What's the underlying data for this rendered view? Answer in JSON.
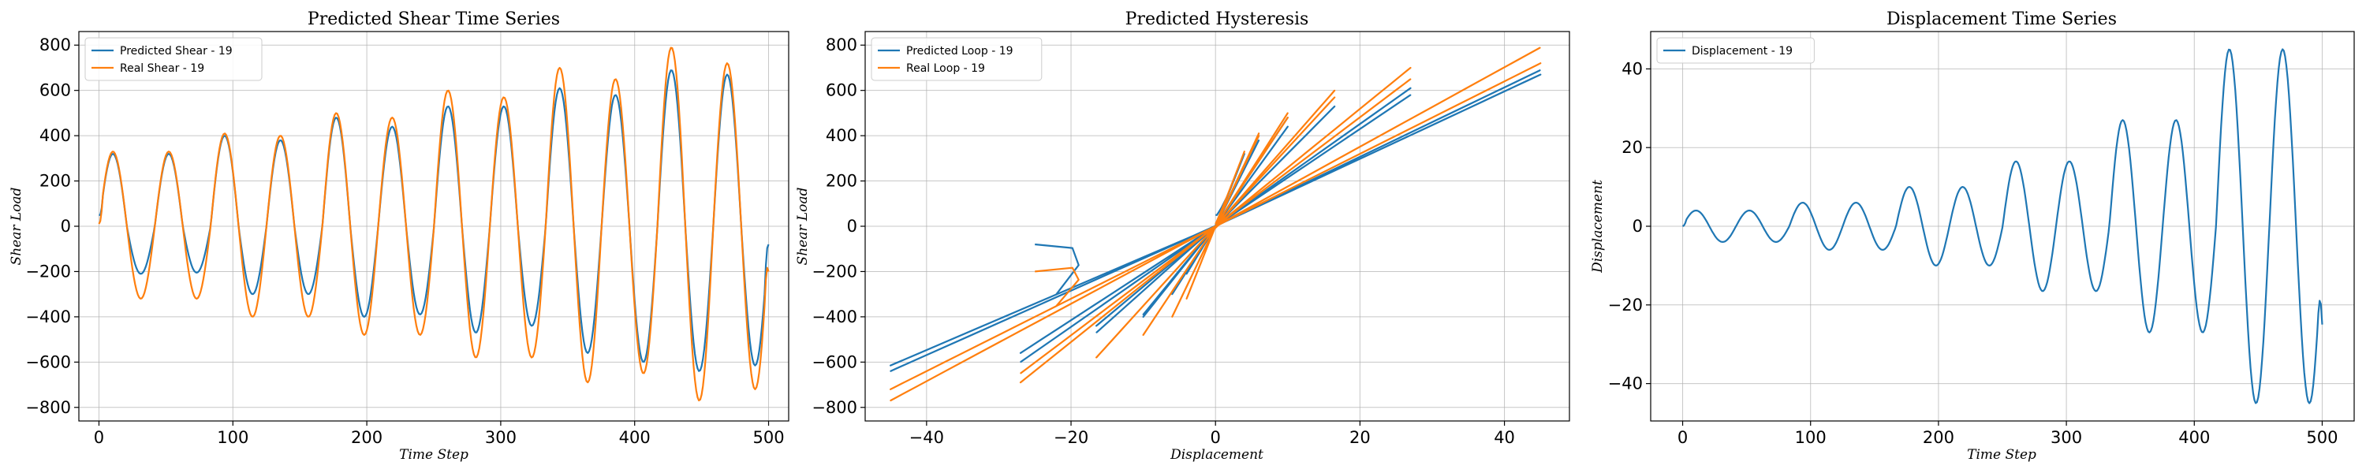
{
  "colors": {
    "blue": "#1f77b4",
    "orange": "#ff7f0e",
    "grid": "#b0b0b0"
  },
  "chart_data": [
    {
      "id": "shear",
      "type": "line",
      "title": "Predicted Shear Time Series",
      "xlabel": "Time Step",
      "ylabel": "Shear Load",
      "xlim": [
        -15,
        515
      ],
      "ylim": [
        -860,
        860
      ],
      "xticks": [
        0,
        100,
        200,
        300,
        400,
        500
      ],
      "yticks": [
        -800,
        -600,
        -400,
        -200,
        0,
        200,
        400,
        600,
        800
      ],
      "grid": true,
      "legend": "top-left",
      "series": [
        {
          "name": "Predicted Shear - 19",
          "color": "#1f77b4",
          "generator": "oscillation",
          "period": 41.7,
          "cycle_peaks": [
            [
              320,
              -210
            ],
            [
              320,
              -205
            ],
            [
              400,
              -300
            ],
            [
              380,
              -300
            ],
            [
              480,
              -400
            ],
            [
              440,
              -390
            ],
            [
              530,
              -470
            ],
            [
              530,
              -440
            ],
            [
              610,
              -560
            ],
            [
              580,
              -600
            ],
            [
              690,
              -640
            ],
            [
              670,
              -615
            ]
          ],
          "start_value": 50,
          "end_value": -80
        },
        {
          "name": "Real Shear - 19",
          "color": "#ff7f0e",
          "generator": "oscillation",
          "period": 41.7,
          "cycle_peaks": [
            [
              330,
              -320
            ],
            [
              330,
              -320
            ],
            [
              410,
              -400
            ],
            [
              400,
              -400
            ],
            [
              500,
              -480
            ],
            [
              480,
              -480
            ],
            [
              600,
              -580
            ],
            [
              570,
              -580
            ],
            [
              700,
              -690
            ],
            [
              650,
              -650
            ],
            [
              790,
              -770
            ],
            [
              720,
              -720
            ]
          ],
          "start_value": 10,
          "end_value": -200
        }
      ]
    },
    {
      "id": "hysteresis",
      "type": "line",
      "title": "Predicted Hysteresis",
      "xlabel": "Displacement",
      "ylabel": "Shear Load",
      "xlim": [
        -48.5,
        49
      ],
      "ylim": [
        -860,
        860
      ],
      "xticks": [
        -40,
        -20,
        0,
        20,
        40
      ],
      "yticks": [
        -800,
        -600,
        -400,
        -200,
        0,
        200,
        400,
        600,
        800
      ],
      "grid": true,
      "legend": "top-left",
      "series": [
        {
          "name": "Predicted Loop - 19",
          "color": "#1f77b4",
          "source": "shear.series.0"
        },
        {
          "name": "Real Loop - 19",
          "color": "#ff7f0e",
          "source": "shear.series.1"
        }
      ]
    },
    {
      "id": "displacement",
      "type": "line",
      "title": "Displacement Time Series",
      "xlabel": "Time Step",
      "ylabel": "Displacement",
      "xlim": [
        -25,
        525
      ],
      "ylim": [
        -49.5,
        49.5
      ],
      "xticks": [
        0,
        100,
        200,
        300,
        400,
        500
      ],
      "yticks": [
        -40,
        -20,
        0,
        20,
        40
      ],
      "grid": true,
      "legend": "top-left",
      "series": [
        {
          "name": "Displacement - 19",
          "color": "#1f77b4",
          "generator": "oscillation",
          "period": 41.7,
          "cycle_peaks": [
            [
              4,
              -4
            ],
            [
              4,
              -4
            ],
            [
              6,
              -6
            ],
            [
              6,
              -6
            ],
            [
              10,
              -10
            ],
            [
              10,
              -10
            ],
            [
              16.5,
              -16.5
            ],
            [
              16.5,
              -16.5
            ],
            [
              27,
              -27
            ],
            [
              27,
              -27
            ],
            [
              45,
              -45
            ],
            [
              45,
              -45
            ]
          ],
          "start_value": 0,
          "end_value": -25
        }
      ]
    }
  ]
}
